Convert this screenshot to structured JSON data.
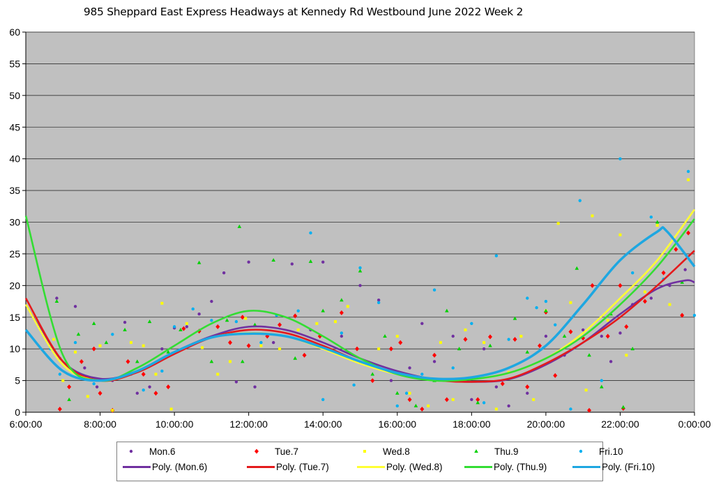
{
  "chart_data": {
    "type": "scatter",
    "title": "985 Sheppard East Express Headways at Kennedy Rd Westbound June 2022  Week 2",
    "xlabel": "",
    "ylabel": "",
    "xlim": [
      "6:00:00",
      "0:00:00"
    ],
    "ylim": [
      0,
      60
    ],
    "x_ticks": [
      "6:00:00",
      "8:00:00",
      "10:00:00",
      "12:00:00",
      "14:00:00",
      "16:00:00",
      "18:00:00",
      "20:00:00",
      "22:00:00",
      "0:00:00"
    ],
    "y_ticks": [
      "0",
      "5",
      "10",
      "15",
      "20",
      "25",
      "30",
      "35",
      "40",
      "45",
      "50",
      "55",
      "60"
    ],
    "grid": "horizontal",
    "legend_position": "bottom",
    "plot_background": "#C0C0C0",
    "series": [
      {
        "name": "Mon.6",
        "marker": "circle",
        "color": "#7030A0",
        "points": [
          [
            "6:50",
            18
          ],
          [
            "6:55",
            8.5
          ],
          [
            "7:20",
            16.7
          ],
          [
            "7:35",
            7
          ],
          [
            "7:55",
            4
          ],
          [
            "8:20",
            5
          ],
          [
            "8:40",
            14.2
          ],
          [
            "9:00",
            3
          ],
          [
            "9:20",
            4
          ],
          [
            "9:40",
            10
          ],
          [
            "10:00",
            13.3
          ],
          [
            "10:20",
            13.5
          ],
          [
            "10:40",
            15.5
          ],
          [
            "11:00",
            17.5
          ],
          [
            "11:20",
            22
          ],
          [
            "11:40",
            4.8
          ],
          [
            "12:00",
            23.7
          ],
          [
            "12:10",
            4
          ],
          [
            "12:40",
            11
          ],
          [
            "13:10",
            23.4
          ],
          [
            "13:40",
            13
          ],
          [
            "14:00",
            23.7
          ],
          [
            "14:30",
            12
          ],
          [
            "15:00",
            20
          ],
          [
            "15:30",
            17.7
          ],
          [
            "15:50",
            5
          ],
          [
            "16:20",
            7
          ],
          [
            "16:40",
            14
          ],
          [
            "17:00",
            8
          ],
          [
            "17:30",
            12
          ],
          [
            "18:00",
            2
          ],
          [
            "18:20",
            10
          ],
          [
            "18:40",
            4
          ],
          [
            "19:00",
            1
          ],
          [
            "19:30",
            3
          ],
          [
            "20:00",
            12
          ],
          [
            "20:30",
            9
          ],
          [
            "21:00",
            13
          ],
          [
            "21:30",
            12
          ],
          [
            "21:45",
            8
          ],
          [
            "22:00",
            12.5
          ],
          [
            "22:20",
            17
          ],
          [
            "22:50",
            18
          ],
          [
            "23:20",
            20
          ],
          [
            "23:45",
            22.5
          ]
        ]
      },
      {
        "name": "Tue.7",
        "marker": "diamond",
        "color": "#FF0000",
        "points": [
          [
            "6:55",
            0.5
          ],
          [
            "7:10",
            4
          ],
          [
            "7:30",
            8
          ],
          [
            "7:50",
            10
          ],
          [
            "8:00",
            3
          ],
          [
            "8:20",
            0.3
          ],
          [
            "8:45",
            8
          ],
          [
            "9:10",
            6
          ],
          [
            "9:30",
            3
          ],
          [
            "9:50",
            4
          ],
          [
            "10:15",
            13.2
          ],
          [
            "10:40",
            12.8
          ],
          [
            "11:10",
            13.5
          ],
          [
            "11:30",
            11
          ],
          [
            "11:50",
            15
          ],
          [
            "12:00",
            10.5
          ],
          [
            "12:30",
            12
          ],
          [
            "12:50",
            13.8
          ],
          [
            "13:15",
            15.2
          ],
          [
            "13:30",
            9
          ],
          [
            "13:55",
            12
          ],
          [
            "14:30",
            15.7
          ],
          [
            "14:55",
            10
          ],
          [
            "15:20",
            5
          ],
          [
            "15:50",
            10
          ],
          [
            "16:05",
            11
          ],
          [
            "16:20",
            2
          ],
          [
            "16:40",
            0.5
          ],
          [
            "17:00",
            9
          ],
          [
            "17:20",
            2
          ],
          [
            "17:50",
            11.5
          ],
          [
            "18:10",
            2
          ],
          [
            "18:30",
            11.9
          ],
          [
            "18:50",
            4.5
          ],
          [
            "19:10",
            11.5
          ],
          [
            "19:30",
            4
          ],
          [
            "19:50",
            10.5
          ],
          [
            "20:00",
            15.8
          ],
          [
            "20:15",
            5.8
          ],
          [
            "20:40",
            12.7
          ],
          [
            "21:00",
            11.7
          ],
          [
            "21:10",
            0.3
          ],
          [
            "21:15",
            20
          ],
          [
            "21:40",
            12
          ],
          [
            "22:00",
            20
          ],
          [
            "22:05",
            0.6
          ],
          [
            "22:10",
            13.5
          ],
          [
            "22:40",
            17.5
          ],
          [
            "23:10",
            22
          ],
          [
            "23:30",
            25.7
          ],
          [
            "23:40",
            15.3
          ],
          [
            "23:50",
            28.3
          ]
        ]
      },
      {
        "name": "Wed.8",
        "marker": "square",
        "color": "#FFFF00",
        "points": [
          [
            "6:45",
            11.5
          ],
          [
            "7:00",
            5
          ],
          [
            "7:20",
            9.5
          ],
          [
            "7:40",
            2.5
          ],
          [
            "8:00",
            10.5
          ],
          [
            "8:20",
            0.3
          ],
          [
            "8:50",
            11
          ],
          [
            "9:10",
            10.5
          ],
          [
            "9:30",
            6
          ],
          [
            "9:40",
            17.2
          ],
          [
            "9:55",
            0.5
          ],
          [
            "10:20",
            14
          ],
          [
            "10:45",
            10.2
          ],
          [
            "11:10",
            6
          ],
          [
            "11:30",
            8
          ],
          [
            "11:55",
            14.8
          ],
          [
            "12:20",
            10.5
          ],
          [
            "12:50",
            10
          ],
          [
            "13:20",
            13
          ],
          [
            "13:50",
            14
          ],
          [
            "14:20",
            14.3
          ],
          [
            "14:40",
            16.7
          ],
          [
            "15:10",
            8
          ],
          [
            "15:30",
            10
          ],
          [
            "16:00",
            12
          ],
          [
            "16:20",
            3
          ],
          [
            "16:50",
            1
          ],
          [
            "17:10",
            11
          ],
          [
            "17:30",
            2
          ],
          [
            "17:50",
            13
          ],
          [
            "18:20",
            11
          ],
          [
            "18:40",
            0.5
          ],
          [
            "19:00",
            6.3
          ],
          [
            "19:20",
            12
          ],
          [
            "19:40",
            2
          ],
          [
            "20:00",
            16
          ],
          [
            "20:20",
            29.8
          ],
          [
            "20:40",
            17.3
          ],
          [
            "21:05",
            3.5
          ],
          [
            "21:15",
            31
          ],
          [
            "21:40",
            14.5
          ],
          [
            "22:00",
            28
          ],
          [
            "22:10",
            9
          ],
          [
            "22:40",
            19
          ],
          [
            "23:00",
            29.5
          ],
          [
            "23:20",
            17
          ],
          [
            "23:50",
            36.7
          ]
        ]
      },
      {
        "name": "Thu.9",
        "marker": "triangle",
        "color": "#00D000",
        "points": [
          [
            "6:50",
            17.5
          ],
          [
            "7:10",
            2
          ],
          [
            "7:25",
            12.3
          ],
          [
            "7:50",
            14
          ],
          [
            "8:10",
            11
          ],
          [
            "8:40",
            13
          ],
          [
            "9:00",
            8
          ],
          [
            "9:20",
            14.3
          ],
          [
            "9:50",
            9.5
          ],
          [
            "10:10",
            13
          ],
          [
            "10:40",
            23.6
          ],
          [
            "11:00",
            8
          ],
          [
            "11:25",
            14.5
          ],
          [
            "11:45",
            29.3
          ],
          [
            "11:50",
            8
          ],
          [
            "12:10",
            13.8
          ],
          [
            "12:40",
            24
          ],
          [
            "13:15",
            8.5
          ],
          [
            "13:40",
            23.8
          ],
          [
            "14:00",
            16
          ],
          [
            "14:30",
            17.7
          ],
          [
            "15:00",
            22.3
          ],
          [
            "15:20",
            6
          ],
          [
            "15:40",
            12
          ],
          [
            "16:00",
            3
          ],
          [
            "16:30",
            1
          ],
          [
            "17:00",
            5
          ],
          [
            "17:20",
            16
          ],
          [
            "17:40",
            10
          ],
          [
            "18:10",
            1.5
          ],
          [
            "18:30",
            10.5
          ],
          [
            "19:10",
            14.8
          ],
          [
            "19:30",
            9.5
          ],
          [
            "20:00",
            16
          ],
          [
            "20:30",
            12
          ],
          [
            "20:50",
            22.7
          ],
          [
            "21:10",
            9
          ],
          [
            "21:30",
            4
          ],
          [
            "21:45",
            15.5
          ],
          [
            "22:05",
            0.8
          ],
          [
            "22:20",
            10
          ],
          [
            "23:00",
            30
          ],
          [
            "23:40",
            20.5
          ]
        ]
      },
      {
        "name": "Fri.10",
        "marker": "circle",
        "color": "#00B0F0",
        "points": [
          [
            "6:40",
            10
          ],
          [
            "6:55",
            6
          ],
          [
            "7:20",
            11
          ],
          [
            "7:50",
            4.5
          ],
          [
            "8:20",
            12.3
          ],
          [
            "8:50",
            6
          ],
          [
            "9:10",
            3.5
          ],
          [
            "9:40",
            6.5
          ],
          [
            "10:00",
            13.5
          ],
          [
            "10:30",
            16.3
          ],
          [
            "11:00",
            14.5
          ],
          [
            "11:40",
            14.3
          ],
          [
            "12:20",
            11
          ],
          [
            "12:45",
            15.3
          ],
          [
            "13:20",
            16
          ],
          [
            "13:40",
            28.3
          ],
          [
            "14:00",
            2
          ],
          [
            "14:30",
            12.5
          ],
          [
            "14:50",
            4.3
          ],
          [
            "15:00",
            22.8
          ],
          [
            "15:30",
            17.3
          ],
          [
            "16:00",
            1
          ],
          [
            "16:15",
            3
          ],
          [
            "16:40",
            6
          ],
          [
            "17:00",
            19.3
          ],
          [
            "17:30",
            7
          ],
          [
            "18:00",
            14
          ],
          [
            "18:20",
            1.5
          ],
          [
            "18:40",
            24.7
          ],
          [
            "19:00",
            11.5
          ],
          [
            "19:30",
            18
          ],
          [
            "19:45",
            16.5
          ],
          [
            "20:00",
            17.5
          ],
          [
            "20:15",
            13.8
          ],
          [
            "20:40",
            0.5
          ],
          [
            "20:55",
            33.4
          ],
          [
            "21:30",
            5
          ],
          [
            "22:00",
            40
          ],
          [
            "22:20",
            22
          ],
          [
            "22:50",
            30.8
          ],
          [
            "23:10",
            21
          ],
          [
            "23:50",
            38
          ],
          [
            "0:00",
            15.3
          ]
        ]
      }
    ],
    "trendlines": [
      {
        "name": "Poly. (Mon.6)",
        "color": "#7030A0",
        "type": "polynomial",
        "hours": [
          "6:00",
          "7:00",
          "8:00",
          "9:00",
          "10:00",
          "11:00",
          "12:00",
          "13:00",
          "14:00",
          "15:00",
          "16:00",
          "17:00",
          "18:00",
          "19:00",
          "20:00",
          "21:00",
          "22:00",
          "23:00",
          "23:45",
          "0:00"
        ],
        "values": [
          17,
          8,
          5.3,
          6.5,
          9.5,
          12,
          13.5,
          13,
          11,
          8.5,
          6.5,
          5.2,
          4.8,
          5.2,
          7.5,
          11,
          15.5,
          19.5,
          20.8,
          20.5
        ]
      },
      {
        "name": "Poly. (Tue.7)",
        "color": "#E41A1C",
        "type": "polynomial",
        "hours": [
          "6:00",
          "7:00",
          "8:00",
          "9:00",
          "10:00",
          "11:00",
          "12:00",
          "13:00",
          "14:00",
          "15:00",
          "16:00",
          "17:00",
          "18:00",
          "19:00",
          "20:00",
          "21:00",
          "22:00",
          "23:00",
          "0:00"
        ],
        "values": [
          18,
          8,
          5,
          6.3,
          9.2,
          11.8,
          13,
          12.5,
          10.5,
          8,
          6.2,
          5.1,
          4.8,
          5.3,
          7.7,
          11,
          15,
          20,
          25.5
        ]
      },
      {
        "name": "Poly. (Wed.8)",
        "color": "#FFFF33",
        "type": "polynomial",
        "hours": [
          "6:00",
          "7:00",
          "8:00",
          "9:00",
          "10:00",
          "11:00",
          "12:00",
          "13:00",
          "14:00",
          "15:00",
          "16:00",
          "17:00",
          "18:00",
          "19:00",
          "20:00",
          "21:00",
          "22:00",
          "23:00",
          "0:00"
        ],
        "values": [
          17,
          7.5,
          5,
          6.5,
          9.5,
          11.8,
          12.5,
          12,
          10,
          7.7,
          6,
          5.2,
          5.2,
          6.2,
          8.5,
          12.5,
          18,
          24,
          32
        ]
      },
      {
        "name": "Poly. (Thu.9)",
        "color": "#33DD33",
        "type": "polynomial",
        "hours": [
          "6:00",
          "7:00",
          "8:00",
          "9:00",
          "10:00",
          "11:00",
          "12:00",
          "13:00",
          "14:00",
          "15:00",
          "16:00",
          "17:00",
          "18:00",
          "19:00",
          "20:00",
          "21:00",
          "22:00",
          "23:00",
          "0:00"
        ],
        "values": [
          31,
          9,
          5,
          7,
          10.5,
          14,
          16,
          15,
          12,
          8.5,
          6,
          5,
          5.2,
          6.2,
          8.5,
          12,
          17,
          23,
          30.5
        ]
      },
      {
        "name": "Poly. (Fri.10)",
        "color": "#1EA7E1",
        "type": "polynomial",
        "hours": [
          "6:00",
          "7:00",
          "8:00",
          "9:00",
          "10:00",
          "11:00",
          "12:00",
          "13:00",
          "14:00",
          "15:00",
          "16:00",
          "17:00",
          "18:00",
          "19:00",
          "20:00",
          "21:00",
          "22:00",
          "23:00",
          "23:15",
          "0:00"
        ],
        "values": [
          13,
          6.5,
          5,
          6.5,
          9.5,
          11.8,
          12.4,
          12,
          10.2,
          8,
          6.2,
          5.3,
          5.5,
          7,
          10.5,
          17,
          24,
          28.5,
          28.6,
          23
        ]
      }
    ]
  }
}
